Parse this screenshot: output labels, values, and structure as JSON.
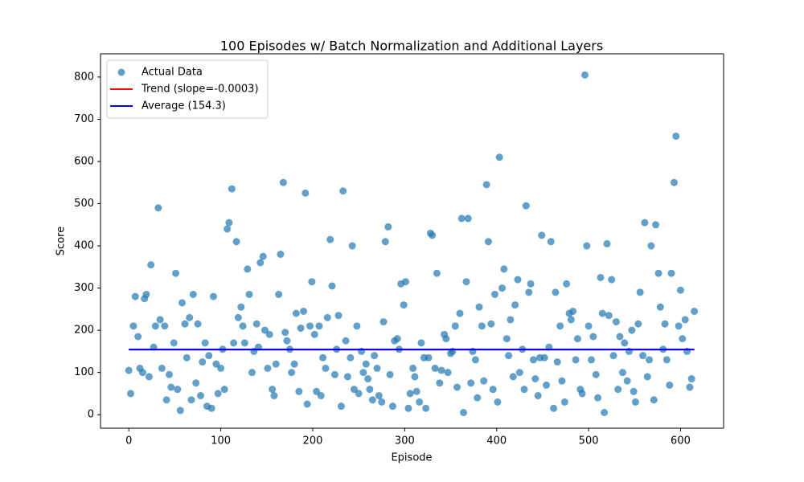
{
  "chart_data": {
    "type": "scatter",
    "title": "100 Episodes w/ Batch Normalization and Additional Layers",
    "x_label": "Episode",
    "y_label": "Score",
    "xlim": [
      -30.8,
      646.8
    ],
    "ylim": [
      -32,
      855
    ],
    "xticks": [
      0,
      100,
      200,
      300,
      400,
      500,
      600
    ],
    "yticks": [
      0,
      100,
      200,
      300,
      400,
      500,
      600,
      700,
      800
    ],
    "legend": "upper left",
    "series": [
      {
        "name": "Actual Data",
        "type": "scatter",
        "color": "#1f77b4",
        "x": [
          0,
          2,
          5,
          7,
          10,
          12,
          15,
          17,
          19,
          22,
          24,
          27,
          29,
          32,
          34,
          36,
          39,
          41,
          44,
          46,
          49,
          51,
          53,
          56,
          58,
          61,
          63,
          66,
          68,
          70,
          73,
          75,
          78,
          80,
          83,
          85,
          87,
          90,
          92,
          95,
          97,
          100,
          102,
          104,
          107,
          109,
          112,
          114,
          117,
          119,
          122,
          124,
          126,
          129,
          131,
          134,
          136,
          139,
          141,
          143,
          146,
          148,
          151,
          153,
          156,
          158,
          160,
          163,
          165,
          168,
          170,
          172,
          175,
          177,
          180,
          182,
          185,
          187,
          190,
          192,
          194,
          197,
          199,
          202,
          204,
          207,
          209,
          211,
          214,
          216,
          219,
          221,
          224,
          226,
          228,
          231,
          233,
          236,
          238,
          241,
          243,
          245,
          248,
          250,
          253,
          255,
          258,
          260,
          262,
          265,
          267,
          270,
          272,
          275,
          277,
          279,
          282,
          284,
          287,
          289,
          292,
          294,
          296,
          299,
          301,
          304,
          306,
          309,
          311,
          313,
          316,
          318,
          321,
          323,
          326,
          328,
          330,
          333,
          335,
          338,
          340,
          343,
          345,
          347,
          350,
          352,
          355,
          357,
          360,
          362,
          364,
          367,
          369,
          372,
          374,
          377,
          379,
          381,
          384,
          386,
          389,
          391,
          394,
          396,
          398,
          401,
          403,
          406,
          408,
          411,
          413,
          415,
          418,
          420,
          423,
          425,
          428,
          430,
          432,
          435,
          437,
          440,
          442,
          445,
          447,
          449,
          452,
          454,
          457,
          459,
          462,
          464,
          466,
          469,
          471,
          474,
          476,
          479,
          481,
          483,
          486,
          488,
          491,
          493,
          496,
          498,
          500,
          503,
          505,
          508,
          510,
          513,
          515,
          517,
          520,
          522,
          525,
          527,
          530,
          532,
          534,
          537,
          539,
          542,
          544,
          547,
          549,
          551,
          554,
          556,
          559,
          561,
          564,
          566,
          568,
          571,
          573,
          576,
          578,
          581,
          583,
          585,
          588,
          590,
          593,
          595,
          598,
          600,
          602,
          605,
          607,
          610,
          612,
          615
        ],
        "values": [
          105,
          50,
          210,
          280,
          185,
          110,
          100,
          275,
          285,
          90,
          355,
          160,
          210,
          490,
          225,
          110,
          210,
          35,
          95,
          65,
          170,
          335,
          60,
          10,
          265,
          215,
          135,
          230,
          35,
          285,
          75,
          215,
          45,
          125,
          170,
          20,
          140,
          15,
          280,
          120,
          50,
          110,
          155,
          60,
          440,
          455,
          535,
          170,
          410,
          230,
          255,
          210,
          170,
          345,
          285,
          100,
          150,
          215,
          160,
          360,
          375,
          200,
          110,
          190,
          60,
          45,
          120,
          285,
          380,
          550,
          195,
          175,
          155,
          100,
          120,
          240,
          55,
          205,
          245,
          525,
          25,
          210,
          315,
          190,
          55,
          210,
          45,
          135,
          110,
          230,
          415,
          305,
          95,
          155,
          235,
          20,
          530,
          175,
          90,
          135,
          400,
          60,
          210,
          50,
          150,
          100,
          120,
          85,
          60,
          35,
          140,
          110,
          45,
          30,
          220,
          410,
          445,
          95,
          20,
          175,
          180,
          155,
          310,
          260,
          315,
          15,
          50,
          110,
          90,
          55,
          30,
          170,
          135,
          15,
          135,
          430,
          425,
          110,
          335,
          75,
          105,
          190,
          180,
          100,
          145,
          150,
          210,
          65,
          240,
          465,
          5,
          315,
          465,
          75,
          150,
          130,
          40,
          255,
          210,
          80,
          545,
          410,
          215,
          60,
          285,
          30,
          610,
          300,
          345,
          180,
          140,
          225,
          90,
          260,
          320,
          100,
          155,
          60,
          495,
          290,
          310,
          130,
          85,
          45,
          135,
          425,
          135,
          70,
          160,
          410,
          15,
          290,
          125,
          210,
          80,
          30,
          310,
          240,
          225,
          245,
          130,
          180,
          60,
          50,
          805,
          400,
          210,
          130,
          185,
          95,
          40,
          325,
          240,
          5,
          405,
          235,
          320,
          140,
          220,
          60,
          185,
          100,
          170,
          80,
          150,
          200,
          55,
          30,
          215,
          290,
          140,
          455,
          90,
          130,
          400,
          35,
          450,
          335,
          255,
          155,
          215,
          130,
          70,
          335,
          550,
          660,
          210,
          295,
          180,
          225,
          150,
          65,
          85,
          245
        ]
      },
      {
        "name": "Trend (slope=-0.0003)",
        "type": "line",
        "color": "#ff0000",
        "x": [
          0,
          615
        ],
        "values": [
          154.4,
          154.2
        ]
      },
      {
        "name": "Average (154.3)",
        "type": "line",
        "color": "#0000ff",
        "x": [
          0,
          615
        ],
        "values": [
          154.3,
          154.3
        ]
      }
    ]
  }
}
